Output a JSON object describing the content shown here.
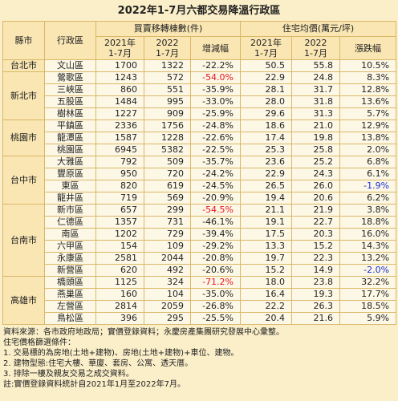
{
  "title": "2022年1-7月六都交易降溫行政區",
  "header": {
    "city": "縣市",
    "district": "行政區",
    "count_group": "買賣移轉棟數(件)",
    "price_group": "住宅均價(萬元/坪)",
    "count_cols": [
      "2021年\n1-7月",
      "2022\n1-7月",
      "增減幅"
    ],
    "price_cols": [
      "2021年\n1-7月",
      "2022\n1-7月",
      "漲跌幅"
    ]
  },
  "groups": [
    {
      "city": "台北市",
      "rows": [
        {
          "cells": [
            "文山區",
            "1700",
            "1322",
            "-22.2%",
            "50.5",
            "55.8",
            "10.5%"
          ]
        }
      ]
    },
    {
      "city": "新北市",
      "rows": [
        {
          "cells": [
            "鶯歌區",
            "1243",
            "572",
            "-54.0%",
            "22.9",
            "24.8",
            "8.3%"
          ],
          "marked": {
            "col": 3,
            "color": "#e8141e"
          }
        },
        {
          "cells": [
            "三峽區",
            "860",
            "551",
            "-35.9%",
            "28.1",
            "31.7",
            "12.8%"
          ]
        },
        {
          "cells": [
            "五股區",
            "1484",
            "995",
            "-33.0%",
            "28.0",
            "31.8",
            "13.6%"
          ]
        },
        {
          "cells": [
            "樹林區",
            "1227",
            "909",
            "-25.9%",
            "29.6",
            "31.3",
            "5.7%"
          ]
        }
      ]
    },
    {
      "city": "桃園市",
      "rows": [
        {
          "cells": [
            "平鎮區",
            "2336",
            "1756",
            "-24.8%",
            "18.6",
            "21.0",
            "12.9%"
          ]
        },
        {
          "cells": [
            "龍潭區",
            "1587",
            "1228",
            "-22.6%",
            "17.4",
            "19.8",
            "13.8%"
          ]
        },
        {
          "cells": [
            "桃園區",
            "6945",
            "5382",
            "-22.5%",
            "25.3",
            "25.8",
            "2.0%"
          ]
        }
      ]
    },
    {
      "city": "台中市",
      "rows": [
        {
          "cells": [
            "大雅區",
            "792",
            "509",
            "-35.7%",
            "23.6",
            "25.2",
            "6.8%"
          ]
        },
        {
          "cells": [
            "豐原區",
            "950",
            "720",
            "-24.2%",
            "22.9",
            "24.3",
            "6.1%"
          ]
        },
        {
          "cells": [
            "東區",
            "820",
            "619",
            "-24.5%",
            "26.5",
            "26.0",
            "-1.9%"
          ],
          "marked": {
            "col": 6,
            "color": "#1a2fd6"
          }
        },
        {
          "cells": [
            "龍井區",
            "719",
            "569",
            "-20.9%",
            "19.4",
            "20.6",
            "6.2%"
          ]
        }
      ]
    },
    {
      "city": "台南市",
      "rows": [
        {
          "cells": [
            "新市區",
            "657",
            "299",
            "-54.5%",
            "21.1",
            "21.9",
            "3.8%"
          ],
          "marked": {
            "col": 3,
            "color": "#e8141e"
          }
        },
        {
          "cells": [
            "仁德區",
            "1357",
            "731",
            "-46.1%",
            "19.1",
            "22.7",
            "18.8%"
          ]
        },
        {
          "cells": [
            "南區",
            "1202",
            "729",
            "-39.4%",
            "17.5",
            "20.3",
            "16.0%"
          ]
        },
        {
          "cells": [
            "六甲區",
            "154",
            "109",
            "-29.2%",
            "13.3",
            "15.2",
            "14.3%"
          ]
        },
        {
          "cells": [
            "永康區",
            "2581",
            "2044",
            "-20.8%",
            "19.7",
            "22.3",
            "13.2%"
          ]
        },
        {
          "cells": [
            "新營區",
            "620",
            "492",
            "-20.6%",
            "15.2",
            "14.9",
            "-2.0%"
          ],
          "marked": {
            "col": 6,
            "color": "#1a2fd6"
          }
        }
      ]
    },
    {
      "city": "高雄市",
      "rows": [
        {
          "cells": [
            "橋頭區",
            "1125",
            "324",
            "-71.2%",
            "18.0",
            "23.8",
            "32.2%"
          ],
          "marked": {
            "col": 3,
            "color": "#e8141e"
          }
        },
        {
          "cells": [
            "燕巢區",
            "160",
            "104",
            "-35.0%",
            "16.4",
            "19.3",
            "17.7%"
          ]
        },
        {
          "cells": [
            "左營區",
            "2814",
            "2059",
            "-26.8%",
            "22.2",
            "26.3",
            "18.5%"
          ]
        },
        {
          "cells": [
            "鳥松區",
            "396",
            "295",
            "-25.5%",
            "20.4",
            "21.6",
            "5.9%"
          ]
        }
      ]
    }
  ],
  "notes": [
    "資料來源：各市政府地政局；實價登錄資料；永慶房產集團研究發展中心彙整。",
    "住宅價格篩選條件：",
    "1. 交易標的為房地(土地+建物)、房地(土地+建物)+車位、建物。",
    "2. 建物型態:住宅大樓、華廈、套房、公寓、透天厝。",
    "3. 排除一樓及親友交易之成交資料。",
    "註:實價登錄資料統計自2021年1月至2022年7月。"
  ]
}
